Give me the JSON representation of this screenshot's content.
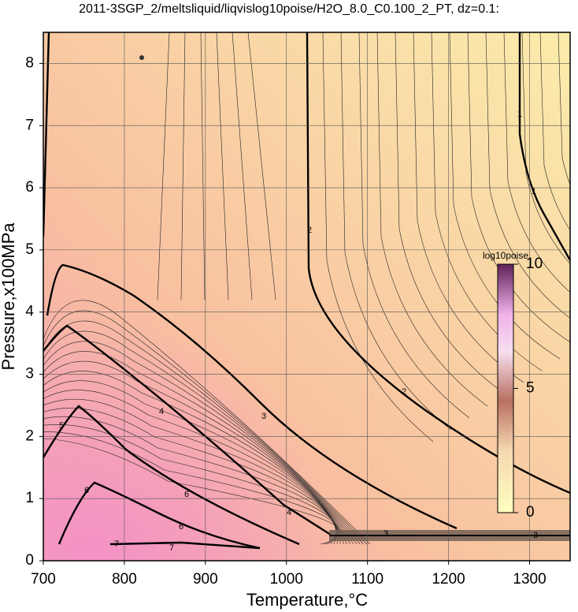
{
  "chart_data": {
    "type": "contour",
    "title": "2011-3SGP_2/meltsliquid/liqvislog10poise/H2O_8.0_C0.100_2_PT, dz=0.1:",
    "xlabel": "Temperature,°C",
    "ylabel": "Pressure,x100MPa",
    "xlim": [
      700,
      1350
    ],
    "xticks": [
      700,
      800,
      900,
      1000,
      1100,
      1200,
      1300
    ],
    "ylim": [
      0,
      8.5
    ],
    "yticks": [
      0,
      1,
      2,
      3,
      4,
      5,
      6,
      7,
      8
    ],
    "grid": true,
    "contour_labels": [
      1,
      1,
      2,
      2,
      3,
      3,
      4,
      4,
      5,
      6,
      6,
      6,
      7,
      7,
      3
    ],
    "colorbar": {
      "label": "log10poise",
      "lim": [
        0,
        10
      ],
      "ticks": [
        0,
        5,
        10
      ]
    }
  }
}
